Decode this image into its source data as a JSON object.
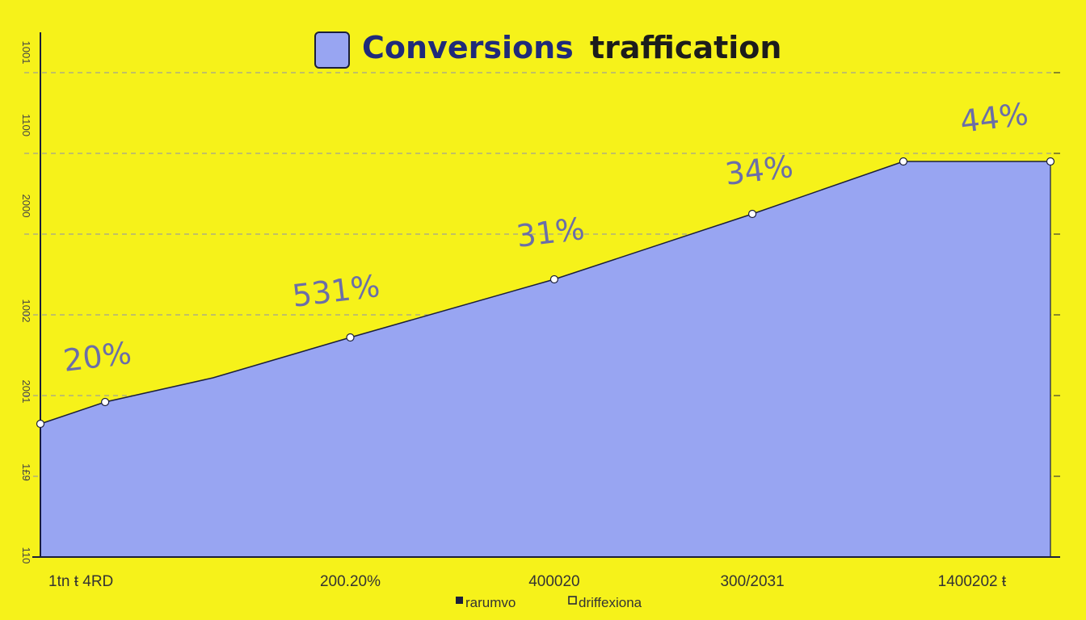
{
  "chart_data": {
    "type": "area",
    "title_part1": "Conversions",
    "title_part2": "traffication",
    "x_tick_labels": [
      "1tn ŧ 4RD",
      "200.20%",
      "400020",
      "300/2031",
      "1400202 ŧ"
    ],
    "y_tick_labels": [
      "1001",
      "1100",
      "2000",
      "1002",
      "2001",
      "1£9",
      "110"
    ],
    "points": [
      {
        "x": 0,
        "y": 16.5,
        "label": ""
      },
      {
        "x": 0.33,
        "y": 19.2,
        "label": "20%"
      },
      {
        "x": 0.88,
        "y": 22.2,
        "label": ""
      },
      {
        "x": 1.58,
        "y": 27.2,
        "label": "531%"
      },
      {
        "x": 2.62,
        "y": 34.4,
        "label": "31%"
      },
      {
        "x": 3.63,
        "y": 42.5,
        "label": "34%"
      },
      {
        "x": 4.4,
        "y": 49.0,
        "label": "44%"
      },
      {
        "x": 5.15,
        "y": 49.0,
        "label": "44%"
      }
    ],
    "xlim": [
      0,
      5.15
    ],
    "ylim": [
      0,
      65
    ],
    "grid": true,
    "legend": {
      "placement": "bottom-center",
      "entries": [
        "rarumvo",
        "driffexiona"
      ]
    },
    "colors": {
      "background": "#f6f21a",
      "area_fill": "#98a5f2",
      "line": "#1b1f3b",
      "grid": "#8b8fb0",
      "title_box": "#98a5f2"
    }
  }
}
